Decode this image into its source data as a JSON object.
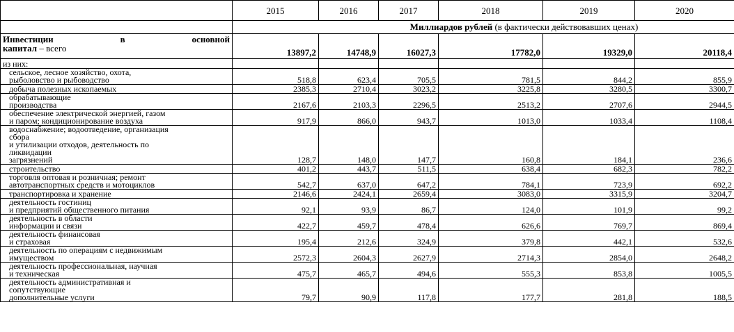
{
  "years": [
    "2015",
    "2016",
    "2017",
    "2018",
    "2019",
    "2020"
  ],
  "unit_bold": "Миллиардов рублей",
  "unit_rest": " (в фактически действовавших ценах)",
  "total": {
    "label_w1": "Инвестиции",
    "label_w2": "в",
    "label_w3": "основной",
    "label_line2_bold": "капитал",
    "label_line2_rest": " – всего",
    "values": [
      "13897,2",
      "14748,9",
      "16027,3",
      "17782,0",
      "19329,0",
      "20118,4"
    ]
  },
  "sub_header": "из них:",
  "rows": [
    {
      "l1": "сельское, лесное хозяйство, охота,",
      "l2": "рыболовство и рыбоводство",
      "values": [
        "518,8",
        "623,4",
        "705,5",
        "781,5",
        "844,2",
        "855,9"
      ]
    },
    {
      "l1": "добыча полезных ископаемых",
      "values": [
        "2385,3",
        "2710,4",
        "3023,2",
        "3225,8",
        "3280,5",
        "3300,7"
      ]
    },
    {
      "l1": "обрабатывающие",
      "l2": "производства",
      "values": [
        "2167,6",
        "2103,3",
        "2296,5",
        "2513,2",
        "2707,6",
        "2944,5"
      ]
    },
    {
      "l1": "обеспечение электрической энергией, газом",
      "l2": "и паром; кондиционирование воздуха",
      "values": [
        "917,9",
        "866,0",
        "943,7",
        "1013,0",
        "1033,4",
        "1108,4"
      ]
    },
    {
      "l1": "водоснабжение; водоотведение, организация",
      "l2": "сбора",
      "l3": "и утилизации отходов, деятельность по",
      "l4": "ликвидации",
      "l5": "загрязнений",
      "values": [
        "128,7",
        "148,0",
        "147,7",
        "160,8",
        "184,1",
        "236,6"
      ]
    },
    {
      "l1": "строительство",
      "values": [
        "401,2",
        "443,7",
        "511,5",
        "638,4",
        "682,3",
        "782,2"
      ]
    },
    {
      "l1": "торговля оптовая и розничная; ремонт",
      "l2": "автотранспортных средств и мотоциклов",
      "values": [
        "542,7",
        "637,0",
        "647,2",
        "784,1",
        "723,9",
        "692,2"
      ]
    },
    {
      "l1": "транспортировка и хранение",
      "values": [
        "2146,6",
        "2424,1",
        "2659,4",
        "3083,0",
        "3315,9",
        "3204,7"
      ]
    },
    {
      "l1": "деятельность гостиниц",
      "l2": "и предприятий общественного питания",
      "values": [
        "92,1",
        "93,9",
        "86,7",
        "124,0",
        "101,9",
        "99,2"
      ]
    },
    {
      "l1": "деятельность в области",
      "l2": "информации и связи",
      "values": [
        "422,7",
        "459,7",
        "478,4",
        "626,6",
        "769,7",
        "869,4"
      ]
    },
    {
      "l1": "деятельность финансовая",
      "l2": "и страховая",
      "values": [
        "195,4",
        "212,6",
        "324,9",
        "379,8",
        "442,1",
        "532,6"
      ]
    },
    {
      "l1": "деятельность по операциям с недвижимым",
      "l2": "имуществом",
      "values": [
        "2572,3",
        "2604,3",
        "2627,9",
        "2714,3",
        "2854,0",
        "2648,2"
      ]
    },
    {
      "l1": "деятельность профессиональная, научная",
      "l2": "и техническая",
      "values": [
        "475,7",
        "465,7",
        "494,6",
        "555,3",
        "853,8",
        "1005,5"
      ]
    },
    {
      "l1": "деятельность административная и",
      "l2": "сопутствующие",
      "l3": "дополнительные услуги",
      "values": [
        "79,7",
        "90,9",
        "117,8",
        "177,7",
        "281,8",
        "188,5"
      ]
    }
  ]
}
